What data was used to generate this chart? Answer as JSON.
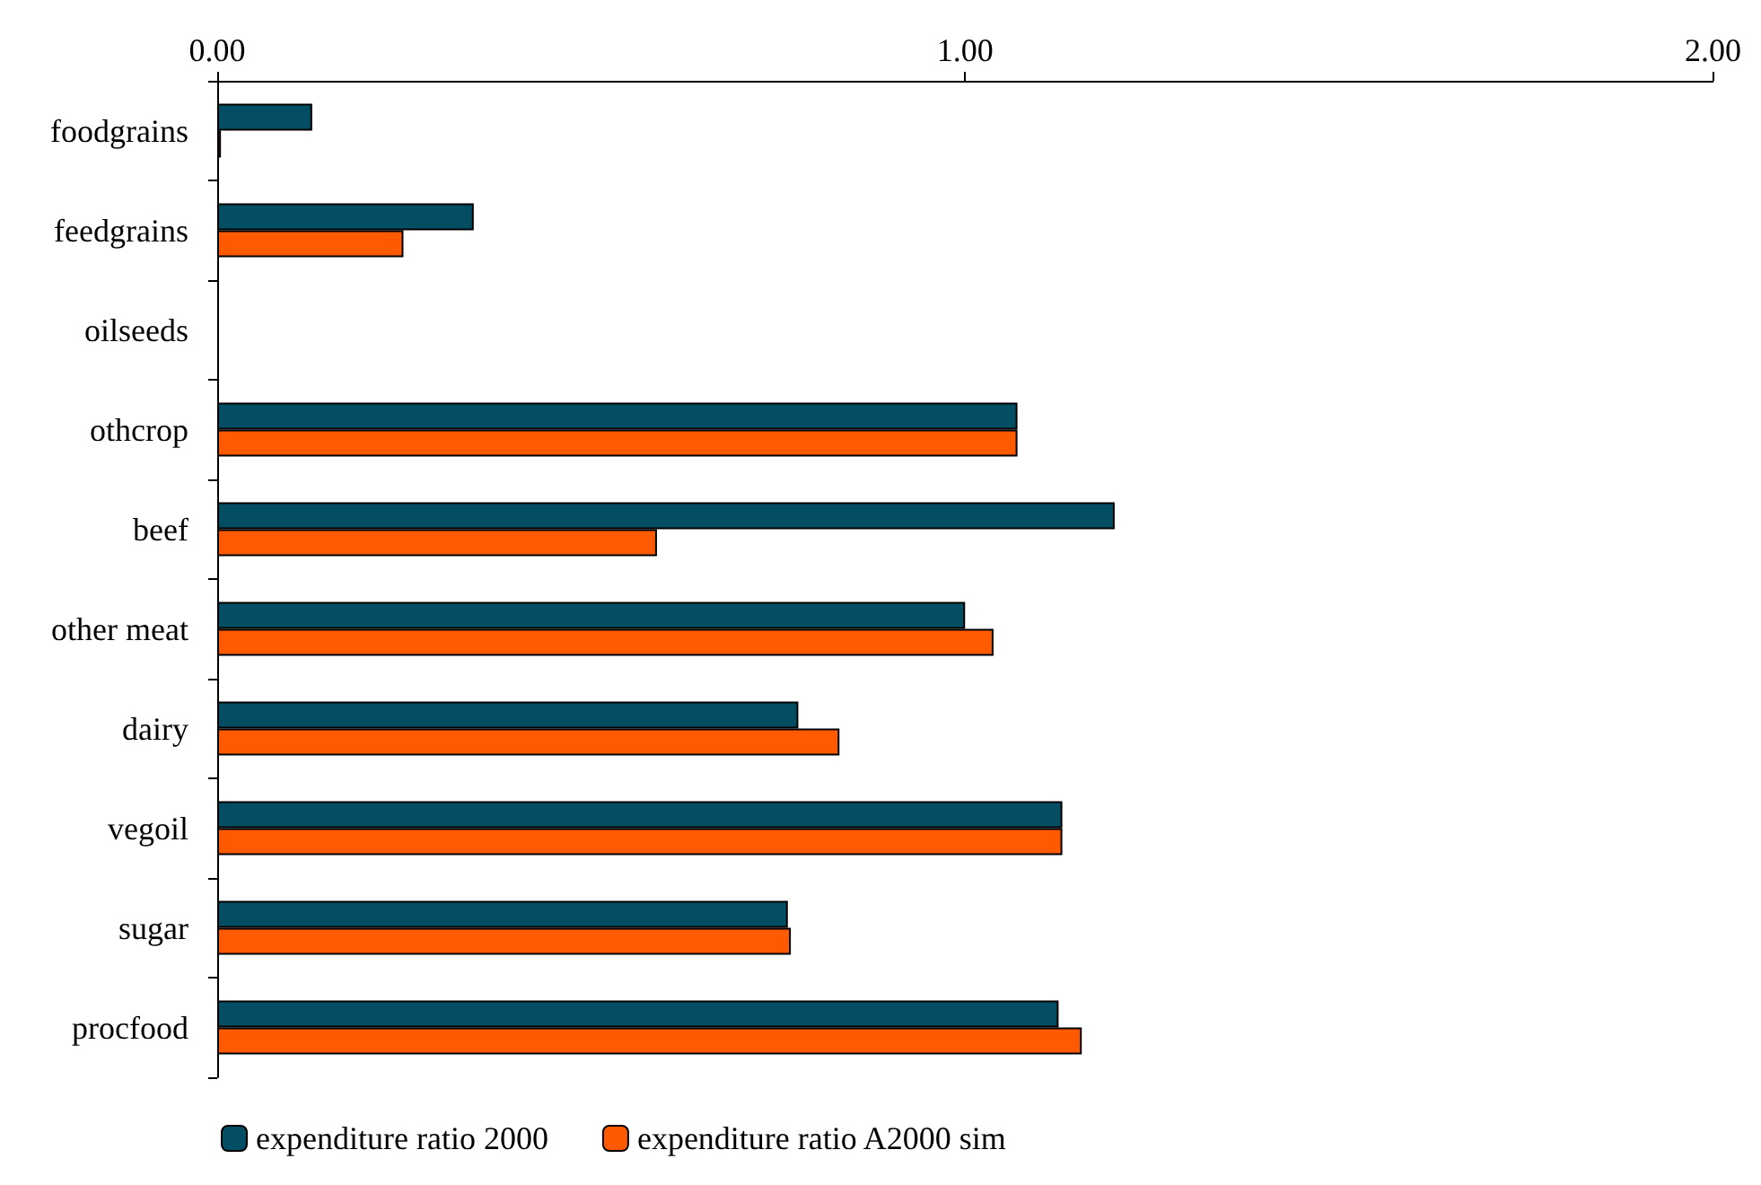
{
  "chart_data": {
    "type": "bar",
    "orientation": "horizontal",
    "categories": [
      "foodgrains",
      "feedgrains",
      "oilseeds",
      "othcrop",
      "beef",
      "other meat",
      "dairy",
      "vegoil",
      "sugar",
      "procfood"
    ],
    "series": [
      {
        "name": "expenditure ratio 2000",
        "color": "#034e62",
        "values": [
          0.127,
          0.343,
          null,
          1.07,
          1.2,
          1.0,
          0.777,
          1.13,
          0.763,
          1.125
        ]
      },
      {
        "name": "expenditure ratio A2000 sim",
        "color": "#ff5a00",
        "values": [
          0.005,
          0.249,
          null,
          1.07,
          0.588,
          1.038,
          0.832,
          1.13,
          0.767,
          1.156
        ]
      }
    ],
    "xlim": [
      0,
      2
    ],
    "xticks": [
      {
        "value": 0,
        "label": "0.00"
      },
      {
        "value": 1,
        "label": "1.00"
      },
      {
        "value": 2,
        "label": "2.00"
      }
    ],
    "grid": false,
    "legend": "bottom"
  }
}
